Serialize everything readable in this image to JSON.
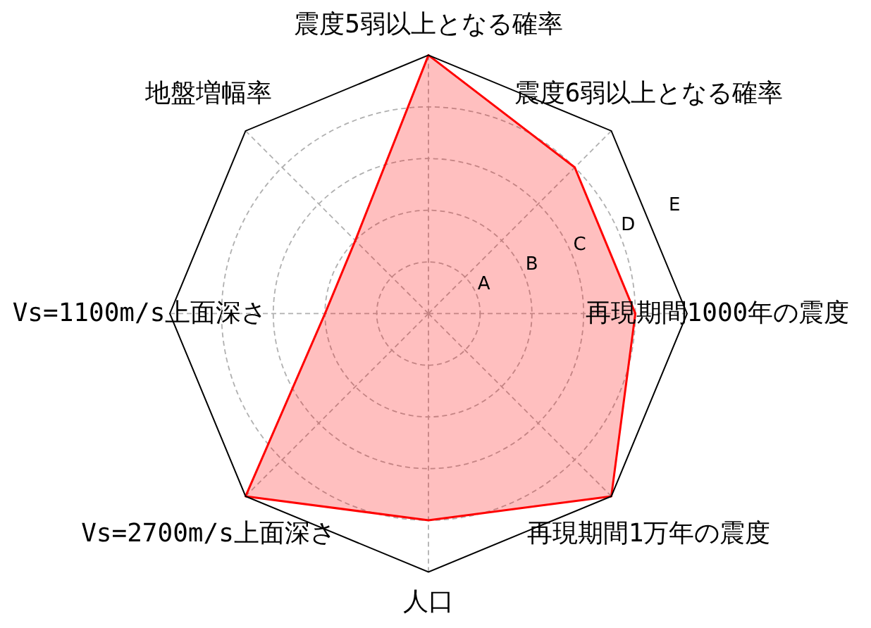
{
  "chart_data": {
    "type": "radar",
    "categories": [
      "震度5弱以上となる確率",
      "震度6弱以上となる確率",
      "再現期間1000年の震度",
      "再現期間1万年の震度",
      "人口",
      "Vs=2700m/s上面深さ",
      "Vs=1100m/s上面深さ",
      "地盤増幅率"
    ],
    "series": [
      {
        "color": "#ff0000",
        "values": [
          5,
          4,
          4,
          5,
          4,
          5,
          2,
          2
        ]
      }
    ],
    "ylim": [
      0,
      5
    ],
    "yticks": [
      {
        "value": 1,
        "label": "A"
      },
      {
        "value": 2,
        "label": "B"
      },
      {
        "value": 3,
        "label": "C"
      },
      {
        "value": 4,
        "label": "D"
      },
      {
        "value": 5,
        "label": "E"
      }
    ],
    "grid": true
  }
}
